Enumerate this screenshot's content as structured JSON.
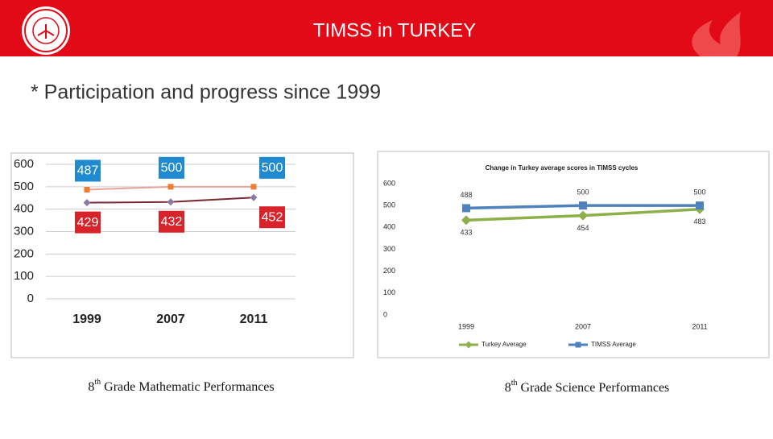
{
  "header": {
    "title": "TIMSS in TURKEY",
    "subtitle": "* Participation and progress since 1999"
  },
  "captions": [
    [
      "8",
      "th",
      " Grade Mathematic Performances"
    ],
    [
      "8",
      "th",
      " Grade Science Performances"
    ]
  ],
  "chart_data": [
    {
      "type": "line",
      "categories": [
        "1999",
        "2007",
        "2011"
      ],
      "ylim": [
        0,
        600
      ],
      "yticks": [
        0,
        100,
        200,
        300,
        400,
        500,
        600
      ],
      "grid": true,
      "series": [
        {
          "color": "#e8a49a",
          "marker": "square",
          "marker_color": "#ed7d31",
          "label_box": "#1f8ad0",
          "label_side": "above",
          "values": [
            487,
            500,
            500
          ]
        },
        {
          "color": "#7b2a34",
          "marker": "diamond",
          "marker_color": "#8e7a9e",
          "label_box": "#d9232a",
          "label_side": "below",
          "values": [
            429,
            432,
            452
          ]
        }
      ]
    },
    {
      "type": "line",
      "title": "Change in  Turkey average scores in TIMSS cycles",
      "categories": [
        "1999",
        "2007",
        "2011"
      ],
      "ylim": [
        0,
        600
      ],
      "yticks": [
        0,
        100,
        200,
        300,
        400,
        500,
        600
      ],
      "grid": false,
      "legend": "bottom",
      "series": [
        {
          "name": "Turkey Average",
          "color": "#8db04a",
          "marker": "diamond",
          "marker_color": "#8db04a",
          "label_side": "below",
          "values": [
            433,
            454,
            483
          ]
        },
        {
          "name": "TIMSS  Average",
          "color": "#4f81bd",
          "marker": "square",
          "marker_color": "#4f81bd",
          "label_side": "above",
          "values": [
            488,
            500,
            500
          ]
        }
      ]
    }
  ]
}
